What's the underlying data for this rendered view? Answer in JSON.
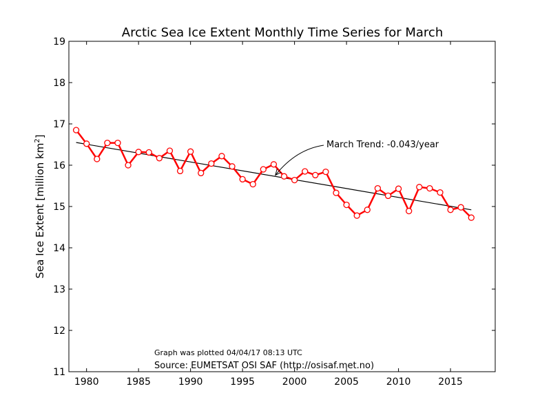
{
  "chart_data": {
    "type": "line",
    "title": "Arctic Sea Ice Extent Monthly Time Series for March",
    "ylabel": "Sea Ice Extent [million km",
    "ylabel_sup": "2",
    "ylabel_end": "]",
    "xlabel": "",
    "xlim": [
      1978.3,
      2019.3
    ],
    "ylim": [
      11,
      19
    ],
    "xticks": [
      1980,
      1985,
      1990,
      1995,
      2000,
      2005,
      2010,
      2015
    ],
    "yticks": [
      11,
      12,
      13,
      14,
      15,
      16,
      17,
      18,
      19
    ],
    "grid": false,
    "series": [
      {
        "name": "",
        "color": "#ff0000",
        "marker": "open-circle",
        "x": [
          1979,
          1980,
          1981,
          1982,
          1983,
          1984,
          1985,
          1986,
          1987,
          1988,
          1989,
          1990,
          1991,
          1992,
          1993,
          1994,
          1995,
          1996,
          1997,
          1998,
          1999,
          2000,
          2001,
          2002,
          2003,
          2004,
          2005,
          2006,
          2007,
          2008,
          2009,
          2010,
          2011,
          2012,
          2013,
          2014,
          2015,
          2016,
          2017
        ],
        "y": [
          16.85,
          16.52,
          16.15,
          16.54,
          16.54,
          16.0,
          16.32,
          16.31,
          16.17,
          16.35,
          15.86,
          16.33,
          15.81,
          16.04,
          16.22,
          15.97,
          15.66,
          15.54,
          15.9,
          16.02,
          15.73,
          15.64,
          15.85,
          15.76,
          15.84,
          15.33,
          15.04,
          14.78,
          14.92,
          15.44,
          15.26,
          15.43,
          14.89,
          15.47,
          15.44,
          15.34,
          14.92,
          14.98,
          14.73
        ]
      }
    ],
    "trend": {
      "color": "#000000",
      "x": [
        1979,
        2017
      ],
      "y": [
        16.55,
        14.92
      ],
      "label": "March Trend: -0.043/year",
      "arrow_to": [
        1998.2,
        15.77
      ]
    },
    "notes": {
      "plotted": "Graph was plotted 04/04/17 08:13 UTC",
      "source": "Source: EUMETSAT OSI SAF (http://osisaf.met.no)"
    }
  }
}
